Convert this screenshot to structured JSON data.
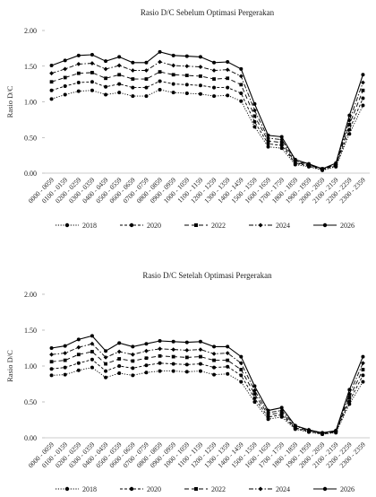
{
  "chart_data": [
    {
      "type": "line",
      "title": "Rasio D/C Sebelum Optimasi Pergerakan",
      "xlabel": "",
      "ylabel": "Rasio D/C",
      "ylim": [
        0,
        2
      ],
      "yticks": [
        "0.00",
        "0.50",
        "1.00",
        "1.50",
        "2.00"
      ],
      "grid": false,
      "legend": "bottom",
      "categories": [
        "0000 - 0059",
        "0100 - 0159",
        "0200 - 0259",
        "0300 - 0359",
        "0400 - 0459",
        "0500 - 0559",
        "0600 - 0659",
        "0700 - 0759",
        "0800 - 0859",
        "0900 - 0959",
        "1000 - 1059",
        "1100 - 1159",
        "1200 - 1259",
        "1300 - 1359",
        "1400 - 1459",
        "1500 - 1559",
        "1600 - 1659",
        "1700 - 1759",
        "1800 - 1859",
        "1900 - 1959",
        "2000 - 2059",
        "2100 - 2159",
        "2200 - 2259",
        "2300 - 2359"
      ],
      "series": [
        {
          "name": "2018",
          "values": [
            1.04,
            1.1,
            1.15,
            1.16,
            1.1,
            1.13,
            1.08,
            1.08,
            1.17,
            1.13,
            1.12,
            1.11,
            1.08,
            1.09,
            1.01,
            0.65,
            0.37,
            0.35,
            0.12,
            0.09,
            0.04,
            0.09,
            0.55,
            0.95
          ]
        },
        {
          "name": "2020",
          "values": [
            1.16,
            1.22,
            1.27,
            1.28,
            1.21,
            1.25,
            1.2,
            1.2,
            1.29,
            1.25,
            1.24,
            1.23,
            1.2,
            1.2,
            1.12,
            0.72,
            0.41,
            0.39,
            0.14,
            0.1,
            0.05,
            0.1,
            0.61,
            1.05
          ]
        },
        {
          "name": "2022",
          "values": [
            1.28,
            1.34,
            1.4,
            1.41,
            1.33,
            1.38,
            1.32,
            1.32,
            1.42,
            1.38,
            1.37,
            1.36,
            1.32,
            1.33,
            1.24,
            0.8,
            0.45,
            0.43,
            0.15,
            0.11,
            0.06,
            0.11,
            0.68,
            1.16
          ]
        },
        {
          "name": "2024",
          "values": [
            1.4,
            1.46,
            1.53,
            1.54,
            1.46,
            1.51,
            1.44,
            1.44,
            1.56,
            1.51,
            1.5,
            1.49,
            1.44,
            1.45,
            1.36,
            0.88,
            0.49,
            0.47,
            0.17,
            0.12,
            0.06,
            0.12,
            0.74,
            1.27
          ]
        },
        {
          "name": "2026",
          "values": [
            1.51,
            1.58,
            1.65,
            1.66,
            1.57,
            1.63,
            1.55,
            1.55,
            1.7,
            1.65,
            1.64,
            1.63,
            1.55,
            1.56,
            1.46,
            0.97,
            0.53,
            0.51,
            0.19,
            0.13,
            0.06,
            0.14,
            0.81,
            1.38
          ]
        }
      ]
    },
    {
      "type": "line",
      "title": "Rasio D/C Setelah Optimasi Pergerakan",
      "xlabel": "",
      "ylabel": "Rasio D/C",
      "ylim": [
        0,
        2
      ],
      "yticks": [
        "0.00",
        "0.50",
        "1.00",
        "1.50",
        "2.00"
      ],
      "grid": false,
      "legend": "bottom",
      "categories": [
        "0000 - 0059",
        "0100 - 0159",
        "0200 - 0259",
        "0300 - 0359",
        "0400 - 0459",
        "0500 - 0559",
        "0600 - 0659",
        "0700 - 0759",
        "0800 - 0859",
        "0900 - 0959",
        "1000 - 1059",
        "1100 - 1159",
        "1200 - 1259",
        "1300 - 1359",
        "1400 - 1459",
        "1500 - 1559",
        "1600 - 1659",
        "1700 - 1759",
        "1800 - 1859",
        "1900 - 1959",
        "2000 - 2059",
        "2100 - 2159",
        "2200 - 2259",
        "2300 - 2359"
      ],
      "series": [
        {
          "name": "2018",
          "values": [
            0.87,
            0.88,
            0.94,
            0.98,
            0.84,
            0.9,
            0.87,
            0.91,
            0.93,
            0.93,
            0.92,
            0.93,
            0.88,
            0.89,
            0.78,
            0.5,
            0.26,
            0.29,
            0.12,
            0.08,
            0.05,
            0.07,
            0.47,
            0.78
          ]
        },
        {
          "name": "2020",
          "values": [
            0.96,
            0.98,
            1.04,
            1.09,
            0.93,
            1.0,
            0.97,
            1.01,
            1.04,
            1.03,
            1.02,
            1.03,
            0.98,
            0.99,
            0.87,
            0.55,
            0.29,
            0.32,
            0.13,
            0.09,
            0.05,
            0.08,
            0.51,
            0.87
          ]
        },
        {
          "name": "2022",
          "values": [
            1.06,
            1.08,
            1.16,
            1.2,
            1.03,
            1.1,
            1.07,
            1.11,
            1.14,
            1.13,
            1.12,
            1.13,
            1.08,
            1.08,
            0.95,
            0.61,
            0.32,
            0.35,
            0.14,
            0.1,
            0.06,
            0.09,
            0.56,
            0.95
          ]
        },
        {
          "name": "2024",
          "values": [
            1.16,
            1.18,
            1.26,
            1.31,
            1.12,
            1.2,
            1.16,
            1.21,
            1.24,
            1.23,
            1.22,
            1.23,
            1.17,
            1.18,
            1.04,
            0.66,
            0.35,
            0.38,
            0.16,
            0.11,
            0.06,
            0.09,
            0.61,
            1.04
          ]
        },
        {
          "name": "2026",
          "values": [
            1.25,
            1.28,
            1.37,
            1.42,
            1.21,
            1.32,
            1.27,
            1.31,
            1.35,
            1.34,
            1.33,
            1.34,
            1.27,
            1.27,
            1.13,
            0.72,
            0.38,
            0.42,
            0.17,
            0.11,
            0.07,
            0.1,
            0.67,
            1.13
          ]
        }
      ]
    }
  ]
}
